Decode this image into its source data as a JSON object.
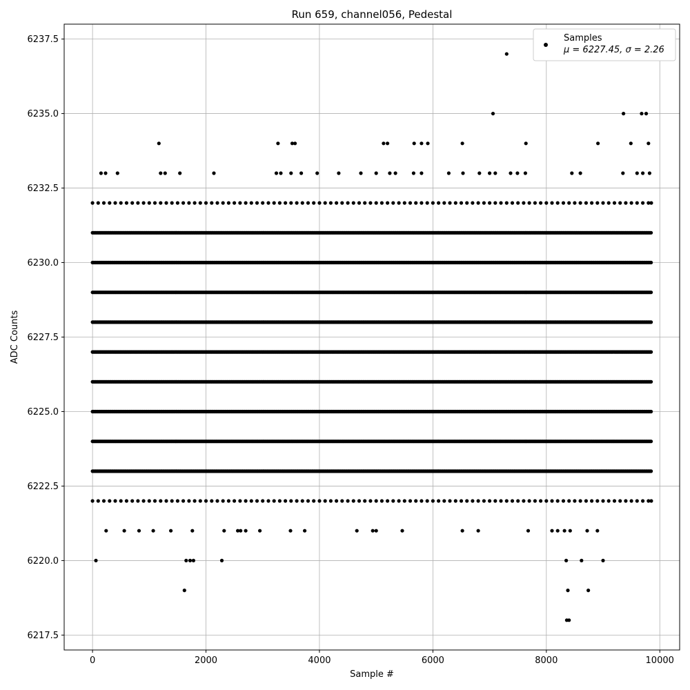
{
  "chart_data": {
    "type": "scatter",
    "title": "Run 659, channel056, Pedestal",
    "xlabel": "Sample #",
    "ylabel": "ADC Counts",
    "xlim": [
      -500,
      10350
    ],
    "ylim": [
      6217.0,
      6238.0
    ],
    "x_ticks": [
      0,
      2000,
      4000,
      6000,
      8000,
      10000
    ],
    "x_tick_labels": [
      "0",
      "2000",
      "4000",
      "6000",
      "8000",
      "10000"
    ],
    "y_ticks": [
      6217.5,
      6220.0,
      6222.5,
      6225.0,
      6227.5,
      6230.0,
      6232.5,
      6235.0,
      6237.5
    ],
    "y_tick_labels": [
      "6217.5",
      "6220.0",
      "6222.5",
      "6225.0",
      "6227.5",
      "6230.0",
      "6232.5",
      "6235.0",
      "6237.5"
    ],
    "grid": true,
    "legend": {
      "placement": "top-right",
      "label": "Samples",
      "stats": "μ = 6227.45, σ = 2.26"
    },
    "marker_color": "#000000",
    "series": [
      {
        "name": "Samples",
        "x": [
          0,
          100,
          200,
          300,
          400,
          500,
          600,
          700,
          800,
          900,
          1000,
          1100,
          1200,
          1300,
          1400,
          1500,
          1600,
          1700,
          1800,
          1900,
          2000,
          2100,
          2200,
          2300,
          2400,
          2500,
          2600,
          2700,
          2800,
          2900,
          3000,
          3100,
          3200,
          3300,
          3400,
          3500,
          3600,
          3700,
          3800,
          3900,
          4000,
          4100,
          4200,
          4300,
          4400,
          4500,
          4600,
          4700,
          4800,
          4900,
          5000,
          5100,
          5200,
          5300,
          5400,
          5500,
          5600,
          5700,
          5800,
          5900,
          6000,
          6100,
          6200,
          6300,
          6400,
          6500,
          6600,
          6700,
          6800,
          6900,
          7000,
          7100,
          7200,
          7300,
          7400,
          7500,
          7600,
          7700,
          7800,
          7900,
          8000,
          8100,
          8200,
          8300,
          8400,
          8500,
          8600,
          8700,
          8800,
          8900,
          9000,
          9100,
          9200,
          9300,
          9400,
          9500,
          9600,
          9700,
          9800,
          9850,
          0,
          100,
          200,
          300,
          400,
          500,
          600,
          700,
          800,
          900,
          1000,
          1100,
          1200,
          1300,
          1400,
          1500,
          1600,
          1700,
          1800,
          1900,
          2000,
          2100,
          2200,
          2300,
          2400,
          2500,
          2600,
          2700,
          2800,
          2900,
          3000,
          3100,
          3200,
          3300,
          3400,
          3500,
          3600,
          3700,
          3800,
          3900,
          4000,
          4100,
          4200,
          4300,
          4400,
          4500,
          4600,
          4700,
          4800,
          4900,
          5000,
          5100,
          5200,
          5300,
          5400,
          5500,
          5600,
          5700,
          5800,
          5900,
          6000,
          6100,
          6200,
          6300,
          6400,
          6500,
          6600,
          6700,
          6800,
          6900,
          7000,
          7100,
          7200,
          7300,
          7400,
          7500,
          7600,
          7700,
          7800,
          7900,
          8000,
          8100,
          8200,
          8300,
          8400,
          8500,
          8600,
          8700,
          8800,
          8900,
          9000,
          9100,
          9200,
          9300,
          9400,
          9500,
          9600,
          9700,
          9800,
          9850,
          60,
          1650,
          1720,
          1780,
          2280,
          8350,
          8620,
          9000,
          1620,
          8380,
          8740,
          8360,
          8400,
          7300,
          7060,
          9360,
          9680,
          9760,
          1170,
          3270,
          3520,
          3570,
          5130,
          5200,
          5670,
          5800,
          5910,
          6520,
          7640,
          8910,
          9490,
          9800,
          150,
          230,
          440,
          1200,
          1280,
          1540,
          2140,
          3240,
          3320,
          3500,
          3680,
          3960,
          4340,
          4730,
          5000,
          5240,
          5340,
          5660,
          5800,
          6280,
          6530,
          6820,
          7000,
          7100,
          7370,
          7490,
          7630,
          8450,
          8600,
          9350,
          9600,
          9700,
          9820
        ],
        "y": [
          6232,
          6232,
          6232,
          6232,
          6232,
          6232,
          6232,
          6232,
          6232,
          6232,
          6232,
          6232,
          6232,
          6232,
          6232,
          6232,
          6232,
          6232,
          6232,
          6232,
          6232,
          6232,
          6232,
          6232,
          6232,
          6232,
          6232,
          6232,
          6232,
          6232,
          6232,
          6232,
          6232,
          6232,
          6232,
          6232,
          6232,
          6232,
          6232,
          6232,
          6232,
          6232,
          6232,
          6232,
          6232,
          6232,
          6232,
          6232,
          6232,
          6232,
          6232,
          6232,
          6232,
          6232,
          6232,
          6232,
          6232,
          6232,
          6232,
          6232,
          6232,
          6232,
          6232,
          6232,
          6232,
          6232,
          6232,
          6232,
          6232,
          6232,
          6232,
          6232,
          6232,
          6232,
          6232,
          6232,
          6232,
          6232,
          6232,
          6232,
          6232,
          6232,
          6232,
          6232,
          6232,
          6232,
          6232,
          6232,
          6232,
          6232,
          6232,
          6232,
          6232,
          6232,
          6232,
          6232,
          6232,
          6232,
          6232,
          6232,
          6222,
          6222,
          6222,
          6222,
          6222,
          6222,
          6222,
          6222,
          6222,
          6222,
          6222,
          6222,
          6222,
          6222,
          6222,
          6222,
          6222,
          6222,
          6222,
          6222,
          6222,
          6222,
          6222,
          6222,
          6222,
          6222,
          6222,
          6222,
          6222,
          6222,
          6222,
          6222,
          6222,
          6222,
          6222,
          6222,
          6222,
          6222,
          6222,
          6222,
          6222,
          6222,
          6222,
          6222,
          6222,
          6222,
          6222,
          6222,
          6222,
          6222,
          6222,
          6222,
          6222,
          6222,
          6222,
          6222,
          6222,
          6222,
          6222,
          6222,
          6222,
          6222,
          6222,
          6222,
          6222,
          6222,
          6222,
          6222,
          6222,
          6222,
          6222,
          6222,
          6222,
          6222,
          6222,
          6222,
          6222,
          6222,
          6222,
          6222,
          6222,
          6222,
          6222,
          6222,
          6222,
          6222,
          6222,
          6222,
          6222,
          6222,
          6222,
          6222,
          6222,
          6222,
          6222,
          6222,
          6222,
          6222,
          6222,
          6222,
          6220,
          6220,
          6220,
          6220,
          6220,
          6220,
          6220,
          6220,
          6219,
          6219,
          6219,
          6218,
          6218,
          6237,
          6235,
          6235,
          6235,
          6235,
          6234,
          6234,
          6234,
          6234,
          6234,
          6234,
          6234,
          6234,
          6234,
          6234,
          6234,
          6234,
          6234,
          6234,
          6233,
          6233,
          6233,
          6233,
          6233,
          6233,
          6233,
          6233,
          6233,
          6233,
          6233,
          6233,
          6233,
          6233,
          6233,
          6233,
          6233,
          6233,
          6233,
          6233,
          6233,
          6233,
          6233,
          6233,
          6233,
          6233,
          6233,
          6233,
          6233,
          6233,
          6233,
          6233,
          6233
        ],
        "dense_levels": [
          6223,
          6224,
          6225,
          6226,
          6227,
          6228,
          6229,
          6230,
          6231
        ],
        "dense_x_range": [
          0,
          9850
        ],
        "sparse_level_6221_x": [
          240,
          560,
          820,
          1070,
          1380,
          1760,
          2320,
          2560,
          2610,
          2700,
          2950,
          3490,
          3740,
          4660,
          4940,
          5000,
          5460,
          6520,
          6800,
          7680,
          8100,
          8200,
          8320,
          8420,
          8720,
          8900
        ]
      }
    ]
  }
}
